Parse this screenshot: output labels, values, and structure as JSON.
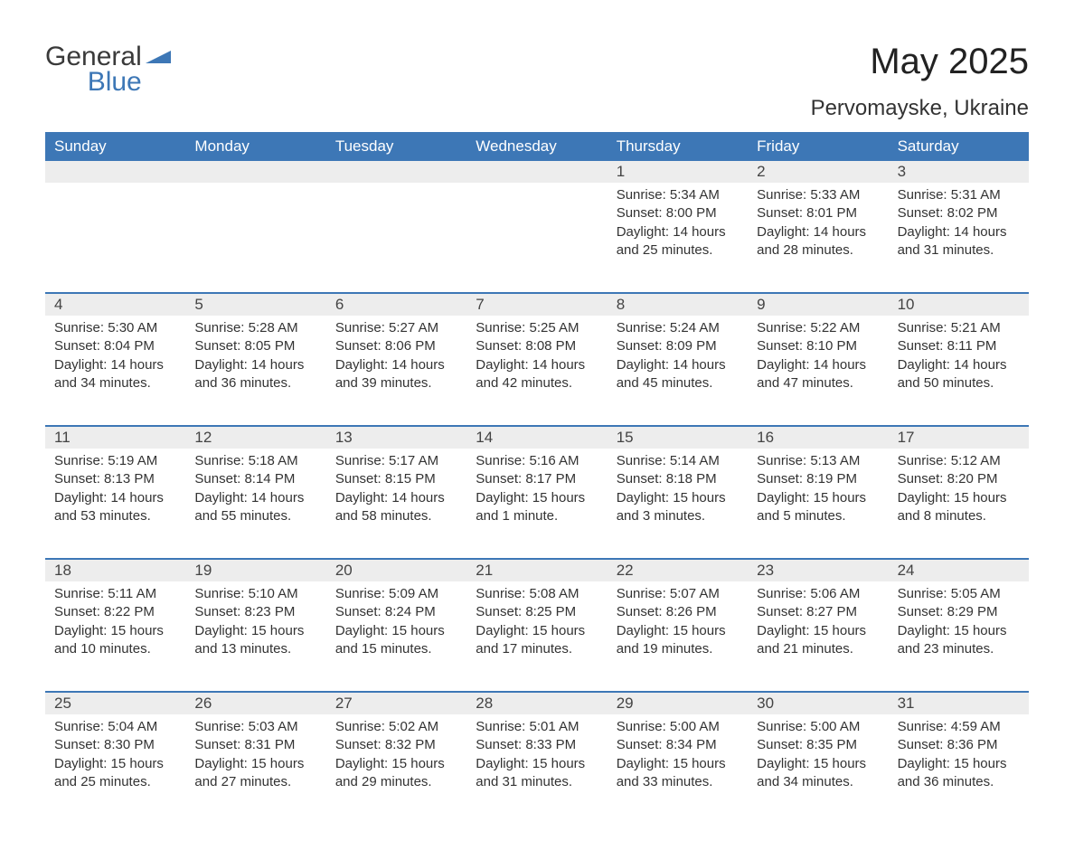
{
  "logo": {
    "word1": "General",
    "word2": "Blue"
  },
  "title": "May 2025",
  "location": "Pervomayske, Ukraine",
  "colors": {
    "header_bg": "#3d77b6",
    "header_text": "#ffffff",
    "daynum_bg": "#ededed",
    "week_divider": "#3d77b6",
    "text": "#333333",
    "logo_gray": "#3a3a3a",
    "logo_blue": "#3d77b6"
  },
  "weekdays": [
    "Sunday",
    "Monday",
    "Tuesday",
    "Wednesday",
    "Thursday",
    "Friday",
    "Saturday"
  ],
  "weeks": [
    [
      {
        "n": "",
        "lines": []
      },
      {
        "n": "",
        "lines": []
      },
      {
        "n": "",
        "lines": []
      },
      {
        "n": "",
        "lines": []
      },
      {
        "n": "1",
        "lines": [
          "Sunrise: 5:34 AM",
          "Sunset: 8:00 PM",
          "Daylight: 14 hours and 25 minutes."
        ]
      },
      {
        "n": "2",
        "lines": [
          "Sunrise: 5:33 AM",
          "Sunset: 8:01 PM",
          "Daylight: 14 hours and 28 minutes."
        ]
      },
      {
        "n": "3",
        "lines": [
          "Sunrise: 5:31 AM",
          "Sunset: 8:02 PM",
          "Daylight: 14 hours and 31 minutes."
        ]
      }
    ],
    [
      {
        "n": "4",
        "lines": [
          "Sunrise: 5:30 AM",
          "Sunset: 8:04 PM",
          "Daylight: 14 hours and 34 minutes."
        ]
      },
      {
        "n": "5",
        "lines": [
          "Sunrise: 5:28 AM",
          "Sunset: 8:05 PM",
          "Daylight: 14 hours and 36 minutes."
        ]
      },
      {
        "n": "6",
        "lines": [
          "Sunrise: 5:27 AM",
          "Sunset: 8:06 PM",
          "Daylight: 14 hours and 39 minutes."
        ]
      },
      {
        "n": "7",
        "lines": [
          "Sunrise: 5:25 AM",
          "Sunset: 8:08 PM",
          "Daylight: 14 hours and 42 minutes."
        ]
      },
      {
        "n": "8",
        "lines": [
          "Sunrise: 5:24 AM",
          "Sunset: 8:09 PM",
          "Daylight: 14 hours and 45 minutes."
        ]
      },
      {
        "n": "9",
        "lines": [
          "Sunrise: 5:22 AM",
          "Sunset: 8:10 PM",
          "Daylight: 14 hours and 47 minutes."
        ]
      },
      {
        "n": "10",
        "lines": [
          "Sunrise: 5:21 AM",
          "Sunset: 8:11 PM",
          "Daylight: 14 hours and 50 minutes."
        ]
      }
    ],
    [
      {
        "n": "11",
        "lines": [
          "Sunrise: 5:19 AM",
          "Sunset: 8:13 PM",
          "Daylight: 14 hours and 53 minutes."
        ]
      },
      {
        "n": "12",
        "lines": [
          "Sunrise: 5:18 AM",
          "Sunset: 8:14 PM",
          "Daylight: 14 hours and 55 minutes."
        ]
      },
      {
        "n": "13",
        "lines": [
          "Sunrise: 5:17 AM",
          "Sunset: 8:15 PM",
          "Daylight: 14 hours and 58 minutes."
        ]
      },
      {
        "n": "14",
        "lines": [
          "Sunrise: 5:16 AM",
          "Sunset: 8:17 PM",
          "Daylight: 15 hours and 1 minute."
        ]
      },
      {
        "n": "15",
        "lines": [
          "Sunrise: 5:14 AM",
          "Sunset: 8:18 PM",
          "Daylight: 15 hours and 3 minutes."
        ]
      },
      {
        "n": "16",
        "lines": [
          "Sunrise: 5:13 AM",
          "Sunset: 8:19 PM",
          "Daylight: 15 hours and 5 minutes."
        ]
      },
      {
        "n": "17",
        "lines": [
          "Sunrise: 5:12 AM",
          "Sunset: 8:20 PM",
          "Daylight: 15 hours and 8 minutes."
        ]
      }
    ],
    [
      {
        "n": "18",
        "lines": [
          "Sunrise: 5:11 AM",
          "Sunset: 8:22 PM",
          "Daylight: 15 hours and 10 minutes."
        ]
      },
      {
        "n": "19",
        "lines": [
          "Sunrise: 5:10 AM",
          "Sunset: 8:23 PM",
          "Daylight: 15 hours and 13 minutes."
        ]
      },
      {
        "n": "20",
        "lines": [
          "Sunrise: 5:09 AM",
          "Sunset: 8:24 PM",
          "Daylight: 15 hours and 15 minutes."
        ]
      },
      {
        "n": "21",
        "lines": [
          "Sunrise: 5:08 AM",
          "Sunset: 8:25 PM",
          "Daylight: 15 hours and 17 minutes."
        ]
      },
      {
        "n": "22",
        "lines": [
          "Sunrise: 5:07 AM",
          "Sunset: 8:26 PM",
          "Daylight: 15 hours and 19 minutes."
        ]
      },
      {
        "n": "23",
        "lines": [
          "Sunrise: 5:06 AM",
          "Sunset: 8:27 PM",
          "Daylight: 15 hours and 21 minutes."
        ]
      },
      {
        "n": "24",
        "lines": [
          "Sunrise: 5:05 AM",
          "Sunset: 8:29 PM",
          "Daylight: 15 hours and 23 minutes."
        ]
      }
    ],
    [
      {
        "n": "25",
        "lines": [
          "Sunrise: 5:04 AM",
          "Sunset: 8:30 PM",
          "Daylight: 15 hours and 25 minutes."
        ]
      },
      {
        "n": "26",
        "lines": [
          "Sunrise: 5:03 AM",
          "Sunset: 8:31 PM",
          "Daylight: 15 hours and 27 minutes."
        ]
      },
      {
        "n": "27",
        "lines": [
          "Sunrise: 5:02 AM",
          "Sunset: 8:32 PM",
          "Daylight: 15 hours and 29 minutes."
        ]
      },
      {
        "n": "28",
        "lines": [
          "Sunrise: 5:01 AM",
          "Sunset: 8:33 PM",
          "Daylight: 15 hours and 31 minutes."
        ]
      },
      {
        "n": "29",
        "lines": [
          "Sunrise: 5:00 AM",
          "Sunset: 8:34 PM",
          "Daylight: 15 hours and 33 minutes."
        ]
      },
      {
        "n": "30",
        "lines": [
          "Sunrise: 5:00 AM",
          "Sunset: 8:35 PM",
          "Daylight: 15 hours and 34 minutes."
        ]
      },
      {
        "n": "31",
        "lines": [
          "Sunrise: 4:59 AM",
          "Sunset: 8:36 PM",
          "Daylight: 15 hours and 36 minutes."
        ]
      }
    ]
  ]
}
